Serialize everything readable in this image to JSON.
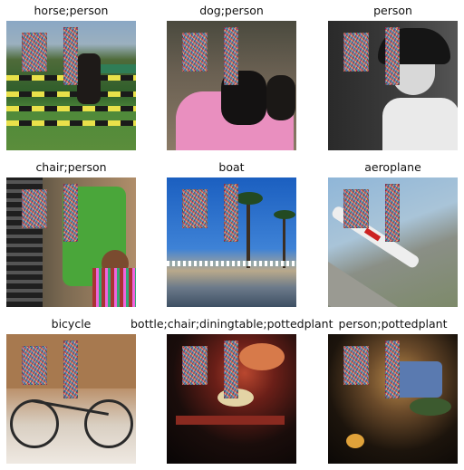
{
  "grid": {
    "cells": [
      {
        "caption": "horse;person"
      },
      {
        "caption": "dog;person"
      },
      {
        "caption": "person"
      },
      {
        "caption": "chair;person"
      },
      {
        "caption": "boat"
      },
      {
        "caption": "aeroplane"
      },
      {
        "caption": "bicycle"
      },
      {
        "caption": "bottle;chair;diningtable;pottedplant"
      },
      {
        "caption": "person;pottedplant"
      }
    ]
  }
}
